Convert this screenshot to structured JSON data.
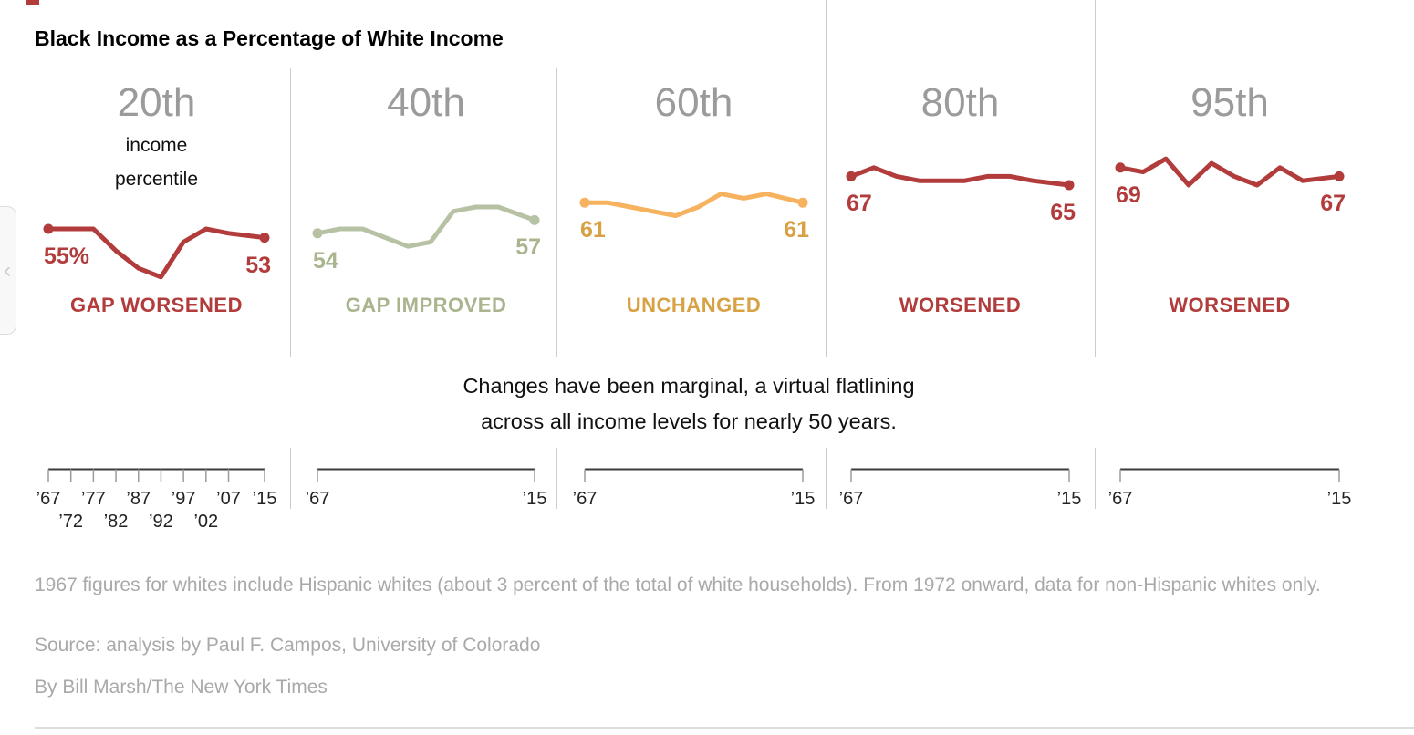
{
  "title": "Black Income as a Percentage of White Income",
  "accent_color": "#b23b3b",
  "annotation_line1": "Changes have been marginal, a virtual flatlining",
  "annotation_line2": "across all income levels for nearly 50 years.",
  "panels": [
    {
      "heading": "20th",
      "subheading": "income\npercentile",
      "start_label": "55%",
      "end_label": "53",
      "status": "GAP WORSENED",
      "line_color": "#b23b3b",
      "label_color": "#b23b3b",
      "axis_start": "’67",
      "axis_end": "’15"
    },
    {
      "heading": "40th",
      "start_label": "54",
      "end_label": "57",
      "status": "GAP IMPROVED",
      "line_color": "#b7c2a4",
      "label_color": "#a8b58e",
      "axis_start": "’67",
      "axis_end": "’15"
    },
    {
      "heading": "60th",
      "start_label": "61",
      "end_label": "61",
      "status": "UNCHANGED",
      "line_color": "#f6b25f",
      "label_color": "#d7a144",
      "axis_start": "’67",
      "axis_end": "’15"
    },
    {
      "heading": "80th",
      "start_label": "67",
      "end_label": "65",
      "status": "WORSENED",
      "line_color": "#b23b3b",
      "label_color": "#b23b3b",
      "axis_start": "’67",
      "axis_end": "’15"
    },
    {
      "heading": "95th",
      "start_label": "69",
      "end_label": "67",
      "status": "WORSENED",
      "line_color": "#b23b3b",
      "label_color": "#b23b3b",
      "axis_start": "’67",
      "axis_end": "’15"
    }
  ],
  "panel1_axis_row1": [
    "’67",
    "’77",
    "’87",
    "’97",
    "’07",
    "’15"
  ],
  "panel1_axis_row2": [
    "’72",
    "’82",
    "’92",
    "’02"
  ],
  "footnote": "1967 figures for whites include Hispanic whites (about 3 percent of the total of white households). From 1972 onward, data for non-Hispanic whites only.",
  "source": "Source: analysis by Paul F. Campos, University of Colorado",
  "byline": "By Bill Marsh/The New York Times",
  "carousel_prev_icon": "‹",
  "chart_data": {
    "type": "line",
    "title": "Black Income as a Percentage of White Income",
    "x": [
      1967,
      1972,
      1977,
      1982,
      1987,
      1992,
      1997,
      2002,
      2007,
      2015
    ],
    "x_tick_labels": [
      "’67",
      "’72",
      "’77",
      "’82",
      "’87",
      "’92",
      "’97",
      "’02",
      "’07",
      "’15"
    ],
    "series": [
      {
        "name": "20th income percentile",
        "status": "GAP WORSENED",
        "color": "#b23b3b",
        "values": [
          55,
          55,
          55,
          50,
          46,
          44,
          52,
          55,
          54,
          53
        ]
      },
      {
        "name": "40th income percentile",
        "status": "GAP IMPROVED",
        "color": "#b7c2a4",
        "values": [
          54,
          55,
          55,
          53,
          51,
          52,
          59,
          60,
          60,
          57
        ]
      },
      {
        "name": "60th income percentile",
        "status": "UNCHANGED",
        "color": "#f6b25f",
        "values": [
          61,
          61,
          60,
          59,
          58,
          60,
          63,
          62,
          63,
          61
        ]
      },
      {
        "name": "80th income percentile",
        "status": "WORSENED",
        "color": "#b23b3b",
        "values": [
          67,
          69,
          67,
          66,
          66,
          66,
          67,
          67,
          66,
          65
        ]
      },
      {
        "name": "95th income percentile",
        "status": "WORSENED",
        "color": "#b23b3b",
        "values": [
          69,
          68,
          71,
          65,
          70,
          67,
          65,
          69,
          66,
          67
        ]
      }
    ],
    "y_unit": "percent",
    "annotation": "Changes have been marginal, a virtual flatlining across all income levels for nearly 50 years.",
    "layout_hint": "five small multiples with shared y scale; first and last points marked with dots and value labels; only first panel has full decade ticks"
  }
}
